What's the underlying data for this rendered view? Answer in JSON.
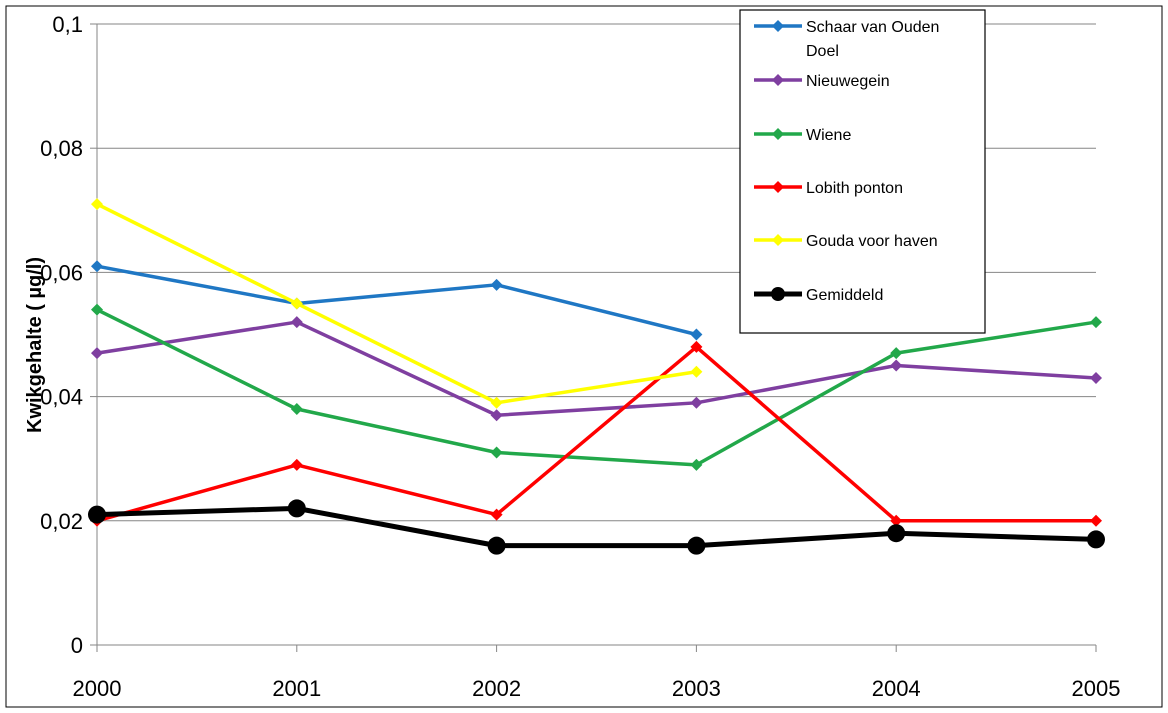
{
  "chart_data": {
    "type": "line",
    "title": "",
    "xlabel": "",
    "ylabel": "Kwikgehalte ( µg/l)",
    "x": [
      "2000",
      "2001",
      "2002",
      "2003",
      "2004",
      "2005"
    ],
    "ylim": [
      0,
      0.1
    ],
    "yticks": [
      "0",
      "0,02",
      "0,04",
      "0,06",
      "0,08",
      "0,1"
    ],
    "grid": true,
    "legend_position": "top-right",
    "series": [
      {
        "name": "Schaar van Ouden Doel",
        "color": "#1f77c4",
        "values": [
          0.061,
          0.055,
          0.058,
          0.05,
          null,
          null
        ]
      },
      {
        "name": "Nieuwegein",
        "color": "#7f3fa0",
        "values": [
          0.047,
          0.052,
          0.037,
          0.039,
          0.045,
          0.043
        ]
      },
      {
        "name": "Wiene",
        "color": "#22a84a",
        "values": [
          0.054,
          0.038,
          0.031,
          0.029,
          0.047,
          0.052
        ]
      },
      {
        "name": "Lobith ponton",
        "color": "#ff0000",
        "values": [
          0.02,
          0.029,
          0.021,
          0.048,
          0.02,
          0.02
        ]
      },
      {
        "name": "Gouda voor haven",
        "color": "#ffff00",
        "values": [
          0.071,
          0.055,
          0.039,
          0.044,
          null,
          null
        ]
      },
      {
        "name": "Gemiddeld",
        "color": "#000000",
        "values": [
          0.021,
          0.022,
          0.016,
          0.016,
          0.018,
          0.017
        ]
      }
    ]
  }
}
